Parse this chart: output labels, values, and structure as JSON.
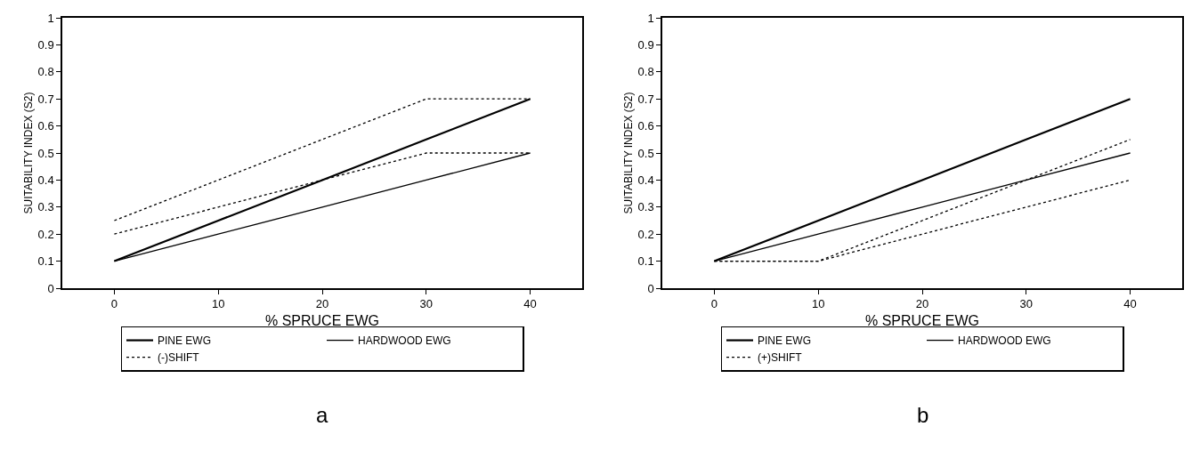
{
  "chart_data": [
    {
      "type": "line",
      "xlabel": "% SPRUCE EWG",
      "ylabel": "SUITABILITY INDEX (S2)",
      "x": [
        0,
        10,
        20,
        30,
        40
      ],
      "xlim": [
        -5,
        45
      ],
      "xticks": [
        0,
        10,
        20,
        30,
        40
      ],
      "ylim": [
        0,
        1
      ],
      "yticks": [
        0,
        0.1,
        0.2,
        0.3,
        0.4,
        0.5,
        0.6,
        0.7,
        0.8,
        0.9,
        1
      ],
      "grid": false,
      "legend": "bottom",
      "marker": "none",
      "annotations": [
        "a"
      ],
      "series": [
        {
          "name": "PINE EWG",
          "color": "#000000",
          "line_style": "solid",
          "values": [
            0.1,
            0.25,
            0.4,
            0.55,
            0.7
          ]
        },
        {
          "name": "HARDWOOD EWG",
          "color": "#000000",
          "line_style": "solid",
          "values": [
            0.1,
            0.2,
            0.3,
            0.4,
            0.5
          ]
        },
        {
          "name": "(-)SHIFT",
          "color": "#000000",
          "line_style": "dotted",
          "values": [
            0.25,
            0.4,
            0.55,
            0.7,
            0.7
          ]
        },
        {
          "color": "#000000",
          "line_style": "dotted",
          "values": [
            0.2,
            0.3,
            0.4,
            0.5,
            0.5
          ]
        }
      ]
    },
    {
      "type": "line",
      "xlabel": "% SPRUCE EWG",
      "ylabel": "SUITABILITY INDEX (S2)",
      "x": [
        0,
        10,
        20,
        30,
        40
      ],
      "xlim": [
        -5,
        45
      ],
      "xticks": [
        0,
        10,
        20,
        30,
        40
      ],
      "ylim": [
        0,
        1
      ],
      "yticks": [
        0,
        0.1,
        0.2,
        0.3,
        0.4,
        0.5,
        0.6,
        0.7,
        0.8,
        0.9,
        1
      ],
      "grid": false,
      "legend": "bottom",
      "marker": "none",
      "annotations": [
        "b"
      ],
      "series": [
        {
          "name": "PINE EWG",
          "color": "#000000",
          "line_style": "solid",
          "values": [
            0.1,
            0.25,
            0.4,
            0.55,
            0.7
          ]
        },
        {
          "name": "HARDWOOD EWG",
          "color": "#000000",
          "line_style": "solid",
          "values": [
            0.1,
            0.2,
            0.3,
            0.4,
            0.5
          ]
        },
        {
          "name": "(+)SHIFT",
          "color": "#000000",
          "line_style": "dotted",
          "values": [
            0.1,
            0.1,
            0.25,
            0.4,
            0.55
          ]
        },
        {
          "color": "#000000",
          "line_style": "dotted",
          "values": [
            0.1,
            0.1,
            0.2,
            0.3,
            0.4
          ]
        }
      ]
    }
  ]
}
